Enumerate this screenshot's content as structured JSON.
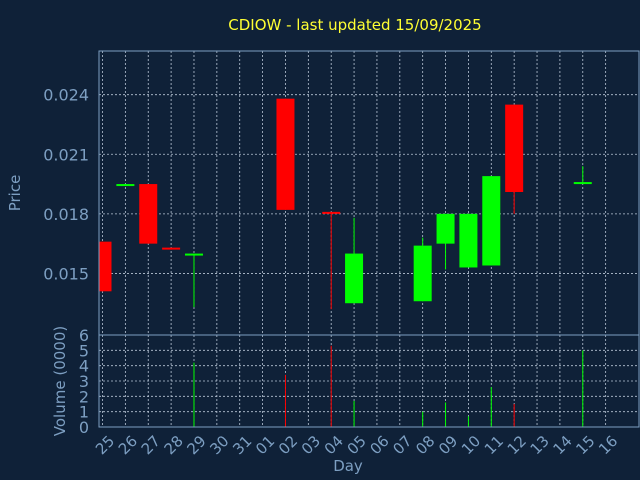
{
  "chart_data": {
    "type": "candlestick",
    "title": "CDIOW - last updated 15/09/2025",
    "xlabel": "Day",
    "ylabel_price": "Price",
    "ylabel_volume": "Volume (0000)",
    "x": [
      "25",
      "26",
      "27",
      "28",
      "29",
      "30",
      "31",
      "01",
      "02",
      "03",
      "04",
      "05",
      "06",
      "07",
      "08",
      "09",
      "10",
      "11",
      "12",
      "13",
      "14",
      "15",
      "16"
    ],
    "price_ylim": [
      0.0119,
      0.0262
    ],
    "price_ticks": [
      "0.015",
      "0.018",
      "0.021",
      "0.024"
    ],
    "price_tick_values": [
      0.015,
      0.018,
      0.021,
      0.024
    ],
    "volume_ylim": [
      0,
      6
    ],
    "volume_ticks": [
      "0",
      "1",
      "2",
      "3",
      "4",
      "5",
      "6"
    ],
    "candles": [
      {
        "x": "25",
        "open": 0.0166,
        "close": 0.0141,
        "high": 0.0166,
        "low": 0.0141
      },
      {
        "x": "26",
        "open": 0.0194,
        "close": 0.0195,
        "high": 0.0195,
        "low": 0.0194
      },
      {
        "x": "27",
        "open": 0.0195,
        "close": 0.0165,
        "high": 0.0195,
        "low": 0.0165
      },
      {
        "x": "28",
        "open": 0.0163,
        "close": 0.0162,
        "high": 0.0163,
        "low": 0.0162
      },
      {
        "x": "29",
        "open": 0.0159,
        "close": 0.016,
        "high": 0.016,
        "low": 0.0133
      },
      {
        "x": "02",
        "open": 0.0238,
        "close": 0.0182,
        "high": 0.0238,
        "low": 0.0182
      },
      {
        "x": "04",
        "open": 0.0181,
        "close": 0.018,
        "high": 0.0181,
        "low": 0.0132
      },
      {
        "x": "05",
        "open": 0.0135,
        "close": 0.016,
        "high": 0.0178,
        "low": 0.0135
      },
      {
        "x": "08",
        "open": 0.0136,
        "close": 0.0164,
        "high": 0.0168,
        "low": 0.0136
      },
      {
        "x": "09",
        "open": 0.0165,
        "close": 0.018,
        "high": 0.018,
        "low": 0.0152
      },
      {
        "x": "10",
        "open": 0.0153,
        "close": 0.018,
        "high": 0.018,
        "low": 0.0153
      },
      {
        "x": "11",
        "open": 0.0154,
        "close": 0.0199,
        "high": 0.0199,
        "low": 0.0154
      },
      {
        "x": "12",
        "open": 0.0235,
        "close": 0.0191,
        "high": 0.0235,
        "low": 0.018
      },
      {
        "x": "15",
        "open": 0.0195,
        "close": 0.0196,
        "high": 0.0204,
        "low": 0.0195
      }
    ],
    "volumes": [
      {
        "x": "29",
        "value": 4.2,
        "direction": "up"
      },
      {
        "x": "02",
        "value": 3.4,
        "direction": "down"
      },
      {
        "x": "04",
        "value": 5.3,
        "direction": "down"
      },
      {
        "x": "05",
        "value": 1.7,
        "direction": "up"
      },
      {
        "x": "08",
        "value": 1.0,
        "direction": "up"
      },
      {
        "x": "09",
        "value": 1.6,
        "direction": "up"
      },
      {
        "x": "10",
        "value": 0.7,
        "direction": "up"
      },
      {
        "x": "11",
        "value": 2.6,
        "direction": "up"
      },
      {
        "x": "12",
        "value": 1.5,
        "direction": "down"
      },
      {
        "x": "15",
        "value": 5.0,
        "direction": "up"
      }
    ],
    "grid": true,
    "colors": {
      "up": "#00ff00",
      "down": "#ff0000",
      "background": "#0f2138",
      "text": "#7d9fc2",
      "title": "#ffff33"
    }
  }
}
